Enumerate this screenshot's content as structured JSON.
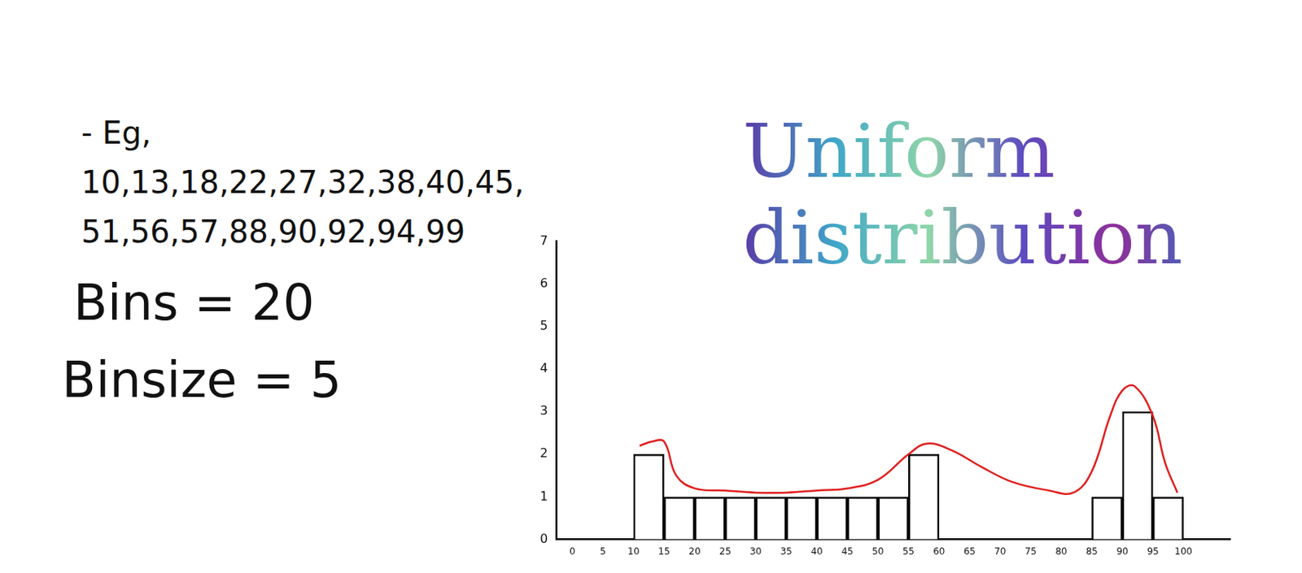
{
  "chart_data": {
    "type": "histogram",
    "title": "Uniform distribution",
    "annotations": [
      "- Eg, 10,13,18,22,27,32,38,40,45, 51,56,57,88,90,92,94,99",
      "Bins = 20",
      "Binsize = 5"
    ],
    "bins": [
      0,
      5,
      10,
      15,
      20,
      25,
      30,
      35,
      40,
      45,
      50,
      55,
      60,
      65,
      70,
      75,
      80,
      85,
      90,
      95,
      100
    ],
    "values": [
      0,
      0,
      2,
      1,
      1,
      1,
      1,
      1,
      1,
      1,
      1,
      2,
      0,
      0,
      0,
      0,
      0,
      1,
      3,
      1
    ],
    "color": "#000000",
    "curve": {
      "type": "line",
      "color": "#e02020",
      "line_style": "solid",
      "x": [
        11,
        13,
        15,
        17,
        20,
        25,
        30,
        35,
        40,
        45,
        50,
        55,
        58,
        62,
        67,
        72,
        78,
        82,
        85,
        88,
        90,
        92,
        95,
        97,
        99
      ],
      "values": [
        2.2,
        2.3,
        2.3,
        1.5,
        1.2,
        1.15,
        1.1,
        1.1,
        1.15,
        1.2,
        1.4,
        2.0,
        2.25,
        2.1,
        1.7,
        1.35,
        1.15,
        1.1,
        1.6,
        2.9,
        3.5,
        3.6,
        2.9,
        1.8,
        1.1
      ]
    },
    "xlim": [
      0,
      105
    ],
    "xticks": [
      0,
      5,
      10,
      15,
      20,
      25,
      30,
      35,
      40,
      45,
      50,
      55,
      60,
      65,
      70,
      75,
      80,
      85,
      90,
      95,
      100
    ],
    "ylim": [
      0,
      7
    ],
    "yticks": [
      0,
      1,
      2,
      3,
      4,
      5,
      6,
      7
    ],
    "grid": false
  }
}
